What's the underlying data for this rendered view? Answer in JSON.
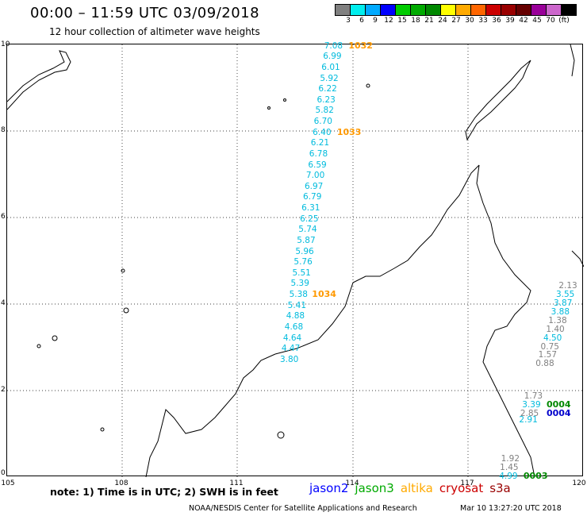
{
  "header": {
    "title": "00:00 – 11:59 UTC 03/09/2018",
    "subtitle": "12 hour collection of altimeter wave heights"
  },
  "scale": {
    "labels": [
      "3",
      "6",
      "9",
      "12",
      "15",
      "18",
      "21",
      "24",
      "27",
      "30",
      "33",
      "36",
      "39",
      "42",
      "45",
      "70",
      "(ft)"
    ],
    "colors": [
      "#808080",
      "#00eeee",
      "#00aaff",
      "#0000ff",
      "#00cc00",
      "#00aa00",
      "#008800",
      "#ffff00",
      "#ffaa00",
      "#ff6600",
      "#cc0000",
      "#990000",
      "#660000",
      "#990099",
      "#cc66cc",
      "#000000"
    ]
  },
  "axes": {
    "lon_labels": [
      "105",
      "108",
      "111",
      "114",
      "117",
      "120"
    ],
    "lat_labels": [
      "10",
      "8",
      "6",
      "4",
      "2",
      "0"
    ],
    "lon_range": [
      105,
      120
    ],
    "lat_range": [
      0,
      10
    ]
  },
  "track_main": {
    "color": "#00bbdd",
    "values": [
      "7.08",
      "6.99",
      "6.01",
      "5.92",
      "6.22",
      "6.23",
      "5.82",
      "6.70",
      "6.40",
      "6.21",
      "6.78",
      "6.59",
      "7.00",
      "6.97",
      "6.79",
      "6.31",
      "6.25",
      "5.74",
      "5.87",
      "5.96",
      "5.76",
      "5.51",
      "5.39",
      "5.38",
      "5.41",
      "4.88",
      "4.68",
      "4.64",
      "4.47",
      "3.80"
    ],
    "lats": [
      9.95,
      9.7,
      9.45,
      9.2,
      8.95,
      8.7,
      8.45,
      8.2,
      7.95,
      7.7,
      7.45,
      7.2,
      6.95,
      6.7,
      6.45,
      6.2,
      5.95,
      5.7,
      5.45,
      5.2,
      4.95,
      4.7,
      4.45,
      4.2,
      3.95,
      3.7,
      3.45,
      3.2,
      2.95,
      2.7
    ],
    "lons": [
      113.75,
      113.72,
      113.68,
      113.64,
      113.6,
      113.56,
      113.52,
      113.48,
      113.45,
      113.4,
      113.36,
      113.33,
      113.28,
      113.24,
      113.2,
      113.16,
      113.12,
      113.08,
      113.04,
      113.0,
      112.96,
      112.92,
      112.88,
      112.84,
      112.8,
      112.76,
      112.72,
      112.68,
      112.64,
      112.6
    ]
  },
  "track_east": {
    "values": [
      "2.13",
      "3.55",
      "3.87",
      "3.88",
      "1.38",
      "1.40",
      "4.50",
      "0.75",
      "1.57",
      "0.88"
    ],
    "colors": [
      "#808080",
      "#00bbdd",
      "#00bbdd",
      "#00bbdd",
      "#808080",
      "#808080",
      "#00bbdd",
      "#808080",
      "#808080",
      "#808080"
    ],
    "lats": [
      4.4,
      4.2,
      4.0,
      3.8,
      3.6,
      3.4,
      3.2,
      3.0,
      2.8,
      2.6
    ],
    "lons": [
      119.85,
      119.78,
      119.72,
      119.65,
      119.58,
      119.52,
      119.45,
      119.38,
      119.32,
      119.25
    ]
  },
  "track_se": {
    "values": [
      "1.73",
      "3.39",
      "2.85",
      "2.91"
    ],
    "colors": [
      "#808080",
      "#00bbdd",
      "#808080",
      "#00bbdd"
    ],
    "lats": [
      1.85,
      1.65,
      1.45,
      1.3
    ],
    "lons": [
      118.95,
      118.9,
      118.85,
      118.82
    ]
  },
  "track_bottom": {
    "values": [
      "1.92",
      "1.45",
      "4.99"
    ],
    "colors": [
      "#808080",
      "#808080",
      "#00bbdd"
    ],
    "lats": [
      0.4,
      0.2,
      0.0
    ],
    "lons": [
      118.35,
      118.32,
      118.3
    ]
  },
  "time_labels": [
    {
      "text": "1032",
      "color": "#ff9900",
      "lat": 9.95,
      "lon": 113.9
    },
    {
      "text": "1033",
      "color": "#ff9900",
      "lat": 7.95,
      "lon": 113.6
    },
    {
      "text": "1034",
      "color": "#ff9900",
      "lat": 4.2,
      "lon": 112.95
    },
    {
      "text": "0004",
      "color": "#008800",
      "lat": 1.65,
      "lon": 119.05
    },
    {
      "text": "0004",
      "color": "#0000cc",
      "lat": 1.45,
      "lon": 119.05
    },
    {
      "text": "0003",
      "color": "#008800",
      "lat": 0.0,
      "lon": 118.45
    }
  ],
  "footer": {
    "note": "note: 1) Time is in UTC; 2) SWH is in feet",
    "satellites": [
      {
        "name": "jason2",
        "color": "#0000ff"
      },
      {
        "name": "jason3",
        "color": "#00aa00"
      },
      {
        "name": "altika",
        "color": "#ffaa00"
      },
      {
        "name": "cryosat",
        "color": "#cc0000"
      },
      {
        "name": "s3a",
        "color": "#990000"
      }
    ],
    "credit": "NOAA/NESDIS Center for Satellite Applications and Research",
    "timestamp": "Mar 10 13:27:20 UTC 2018"
  }
}
